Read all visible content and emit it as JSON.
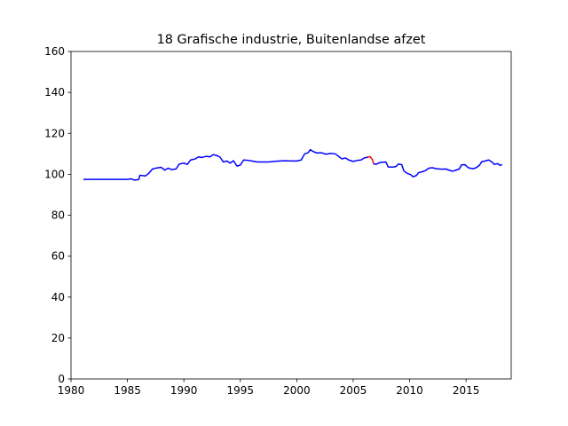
{
  "chart_data": {
    "type": "line",
    "title": "18 Grafische industrie, Buitenlandse afzet",
    "xlabel": "",
    "ylabel": "",
    "xlim": [
      1980,
      2019
    ],
    "ylim": [
      0,
      160
    ],
    "x_ticks": [
      1980,
      1985,
      1990,
      1995,
      2000,
      2005,
      2010,
      2015
    ],
    "y_ticks": [
      0,
      20,
      40,
      60,
      80,
      100,
      120,
      140,
      160
    ],
    "grid": false,
    "legend": "none",
    "series": [
      {
        "color": "#0000ff",
        "points": [
          [
            1981.1,
            97.5
          ],
          [
            1983.0,
            97.5
          ],
          [
            1985.0,
            97.5
          ],
          [
            1985.3,
            97.8
          ],
          [
            1985.6,
            97.2
          ],
          [
            1986.0,
            97.4
          ],
          [
            1986.1,
            99.5
          ],
          [
            1986.6,
            99.2
          ],
          [
            1986.9,
            100.5
          ],
          [
            1987.2,
            102.5
          ],
          [
            1987.5,
            103.0
          ],
          [
            1988.0,
            103.4
          ],
          [
            1988.3,
            102.0
          ],
          [
            1988.6,
            103.0
          ],
          [
            1988.9,
            102.3
          ],
          [
            1989.3,
            102.6
          ],
          [
            1989.6,
            105.0
          ],
          [
            1990.0,
            105.5
          ],
          [
            1990.3,
            104.8
          ],
          [
            1990.6,
            107.0
          ],
          [
            1991.0,
            107.5
          ],
          [
            1991.3,
            108.5
          ],
          [
            1991.6,
            108.2
          ],
          [
            1992.0,
            108.8
          ],
          [
            1992.3,
            108.5
          ],
          [
            1992.6,
            109.6
          ],
          [
            1992.9,
            109.2
          ],
          [
            1993.2,
            108.4
          ],
          [
            1993.5,
            106.0
          ],
          [
            1993.8,
            106.5
          ],
          [
            1994.1,
            105.5
          ],
          [
            1994.4,
            106.6
          ],
          [
            1994.7,
            104.0
          ],
          [
            1995.0,
            104.5
          ],
          [
            1995.3,
            107.0
          ],
          [
            1995.7,
            106.8
          ],
          [
            1996.0,
            106.5
          ],
          [
            1996.5,
            106.0
          ],
          [
            1997.0,
            106.0
          ],
          [
            1997.5,
            106.0
          ],
          [
            1998.0,
            106.3
          ],
          [
            1998.5,
            106.5
          ],
          [
            1999.0,
            106.6
          ],
          [
            1999.5,
            106.5
          ],
          [
            2000.0,
            106.5
          ],
          [
            2000.4,
            107.0
          ],
          [
            2000.7,
            110.0
          ],
          [
            2001.0,
            110.5
          ],
          [
            2001.2,
            112.0
          ],
          [
            2001.5,
            111.0
          ],
          [
            2001.8,
            110.4
          ],
          [
            2002.2,
            110.5
          ],
          [
            2002.6,
            109.8
          ],
          [
            2003.0,
            110.2
          ],
          [
            2003.4,
            110.0
          ],
          [
            2003.7,
            108.8
          ],
          [
            2004.0,
            107.5
          ],
          [
            2004.3,
            108.0
          ],
          [
            2004.6,
            107.0
          ],
          [
            2005.0,
            106.3
          ],
          [
            2005.4,
            106.8
          ],
          [
            2005.7,
            107.0
          ],
          [
            2006.0,
            108.0
          ],
          [
            2006.3,
            108.4
          ]
        ]
      },
      {
        "color": "#ff0000",
        "points": [
          [
            2006.3,
            108.4
          ],
          [
            2006.5,
            108.6
          ],
          [
            2006.7,
            107.2
          ],
          [
            2006.8,
            105.2
          ]
        ]
      },
      {
        "color": "#0000ff",
        "points": [
          [
            2006.8,
            105.2
          ],
          [
            2007.0,
            104.8
          ],
          [
            2007.3,
            105.6
          ],
          [
            2007.6,
            105.9
          ],
          [
            2007.9,
            106.0
          ],
          [
            2008.1,
            103.6
          ],
          [
            2008.5,
            103.5
          ],
          [
            2008.8,
            103.8
          ],
          [
            2009.0,
            105.0
          ],
          [
            2009.3,
            104.7
          ],
          [
            2009.5,
            101.6
          ],
          [
            2009.8,
            100.4
          ],
          [
            2010.1,
            99.8
          ],
          [
            2010.3,
            98.8
          ],
          [
            2010.6,
            99.4
          ],
          [
            2010.8,
            100.8
          ],
          [
            2011.1,
            101.2
          ],
          [
            2011.4,
            101.8
          ],
          [
            2011.7,
            103.0
          ],
          [
            2012.0,
            103.2
          ],
          [
            2012.4,
            102.7
          ],
          [
            2012.8,
            102.5
          ],
          [
            2013.2,
            102.6
          ],
          [
            2013.5,
            102.0
          ],
          [
            2013.8,
            101.5
          ],
          [
            2014.1,
            102.0
          ],
          [
            2014.4,
            102.6
          ],
          [
            2014.6,
            104.6
          ],
          [
            2014.9,
            104.7
          ],
          [
            2015.2,
            103.2
          ],
          [
            2015.6,
            102.7
          ],
          [
            2015.9,
            103.2
          ],
          [
            2016.2,
            104.5
          ],
          [
            2016.4,
            106.2
          ],
          [
            2016.7,
            106.5
          ],
          [
            2017.0,
            107.0
          ],
          [
            2017.3,
            106.0
          ],
          [
            2017.5,
            104.8
          ],
          [
            2017.8,
            105.2
          ],
          [
            2018.0,
            104.4
          ],
          [
            2018.2,
            104.7
          ]
        ]
      }
    ]
  }
}
